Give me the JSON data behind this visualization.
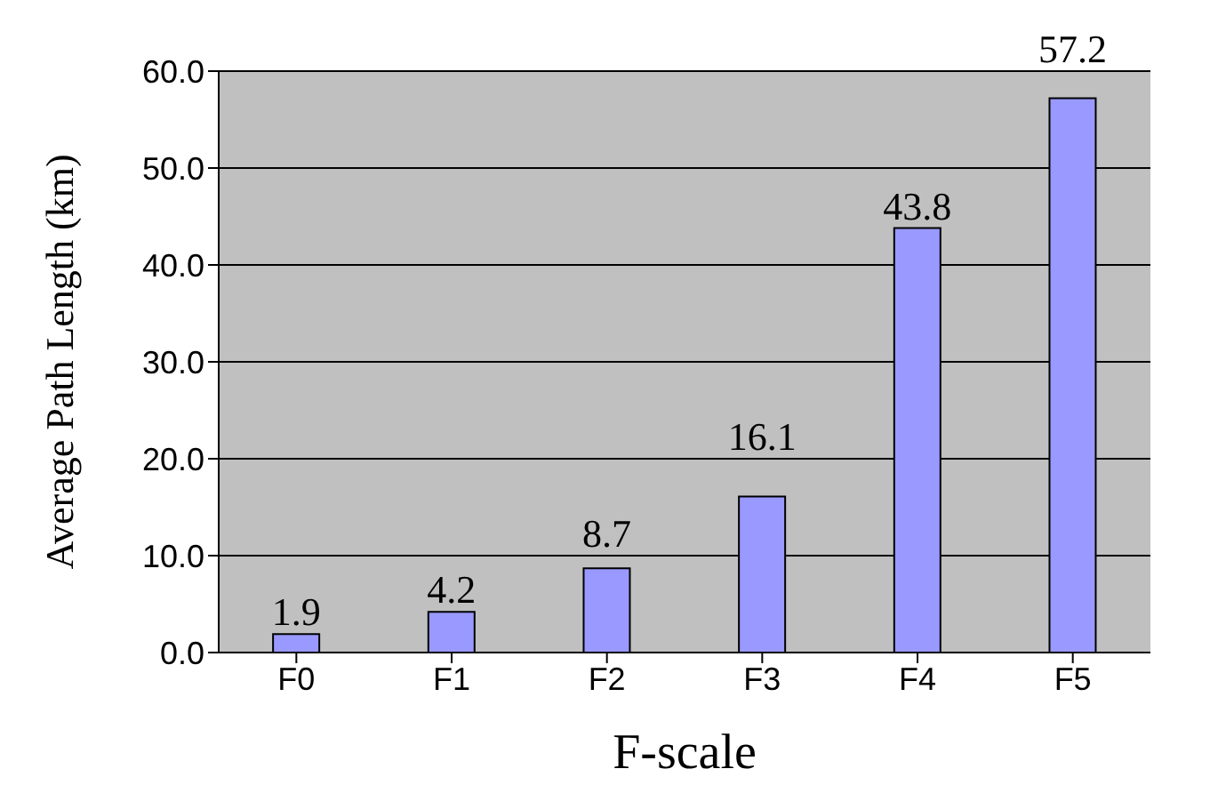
{
  "chart_data": {
    "type": "bar",
    "xlabel": "F-scale",
    "ylabel": "Average Path Length (km)",
    "categories": [
      "F0",
      "F1",
      "F2",
      "F3",
      "F4",
      "F5"
    ],
    "values": [
      1.9,
      4.2,
      8.7,
      16.1,
      43.8,
      57.2
    ],
    "color": "#9999ff",
    "ylim": [
      0,
      60
    ],
    "yticks": [
      {
        "value": 0,
        "label": "0.0"
      },
      {
        "value": 10,
        "label": "10.0"
      },
      {
        "value": 20,
        "label": "20.0"
      },
      {
        "value": 30,
        "label": "30.0"
      },
      {
        "value": 40,
        "label": "40.0"
      },
      {
        "value": 50,
        "label": "50.0"
      },
      {
        "value": 60,
        "label": "60.0"
      }
    ],
    "grid": "y",
    "data_labels": true
  }
}
